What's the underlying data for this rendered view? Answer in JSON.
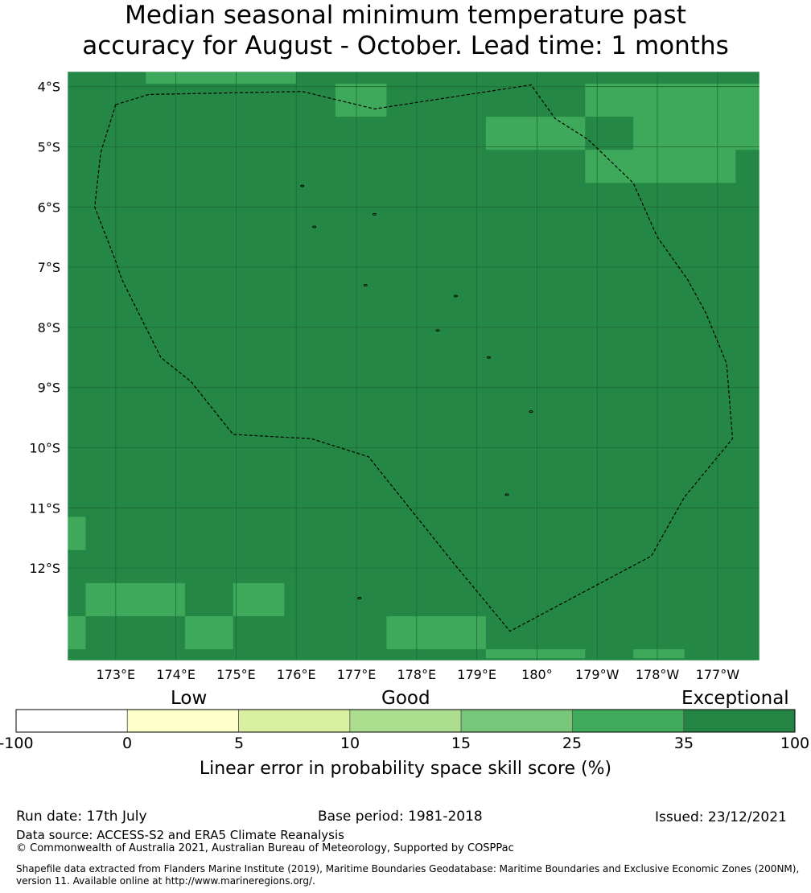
{
  "title": {
    "line1": "Median seasonal minimum temperature past",
    "line2": "accuracy for August - October. Lead time: 1 months"
  },
  "map": {
    "lat_labels": [
      "4°S",
      "5°S",
      "6°S",
      "7°S",
      "8°S",
      "9°S",
      "10°S",
      "11°S",
      "12°S"
    ],
    "lon_labels": [
      "173°E",
      "174°E",
      "175°E",
      "176°E",
      "177°E",
      "178°E",
      "179°E",
      "180°",
      "179°W",
      "178°W",
      "177°W"
    ],
    "lat_range": [
      -13.15,
      -3.75
    ],
    "lon_range": [
      172.2,
      183.7
    ],
    "base_color": "#248745",
    "patch_color": "#3fa95b",
    "light_patches": [
      {
        "lon": [
          173.5,
          176.0
        ],
        "lat": [
          -3.75,
          -3.95
        ]
      },
      {
        "lon": [
          176.65,
          177.5
        ],
        "lat": [
          -3.95,
          -4.5
        ]
      },
      {
        "lon": [
          179.15,
          180.8
        ],
        "lat": [
          -4.5,
          -5.05
        ]
      },
      {
        "lon": [
          180.8,
          183.7
        ],
        "lat": [
          -3.95,
          -4.5
        ]
      },
      {
        "lon": [
          181.6,
          183.7
        ],
        "lat": [
          -4.5,
          -5.05
        ]
      },
      {
        "lon": [
          180.8,
          183.3
        ],
        "lat": [
          -5.05,
          -5.6
        ]
      },
      {
        "lon": [
          172.2,
          172.5
        ],
        "lat": [
          -11.15,
          -11.7
        ]
      },
      {
        "lon": [
          172.5,
          174.15
        ],
        "lat": [
          -12.25,
          -12.8
        ]
      },
      {
        "lon": [
          174.95,
          175.8
        ],
        "lat": [
          -12.25,
          -12.8
        ]
      },
      {
        "lon": [
          172.2,
          172.5
        ],
        "lat": [
          -12.8,
          -13.35
        ]
      },
      {
        "lon": [
          174.15,
          174.95
        ],
        "lat": [
          -12.8,
          -13.35
        ]
      },
      {
        "lon": [
          177.5,
          179.15
        ],
        "lat": [
          -12.8,
          -13.35
        ]
      },
      {
        "lon": [
          179.15,
          180.8
        ],
        "lat": [
          -13.35,
          -13.5
        ]
      },
      {
        "lon": [
          181.6,
          182.45
        ],
        "lat": [
          -13.35,
          -13.5
        ]
      }
    ],
    "eez_boundary": [
      [
        173.0,
        -4.3
      ],
      [
        173.55,
        -4.13
      ],
      [
        176.1,
        -4.08
      ],
      [
        177.3,
        -4.37
      ],
      [
        179.9,
        -3.97
      ],
      [
        180.3,
        -4.53
      ],
      [
        180.85,
        -4.88
      ],
      [
        181.6,
        -5.6
      ],
      [
        182.0,
        -6.5
      ],
      [
        182.5,
        -7.2
      ],
      [
        182.8,
        -7.75
      ],
      [
        183.15,
        -8.6
      ],
      [
        183.25,
        -9.85
      ],
      [
        182.45,
        -10.82
      ],
      [
        181.9,
        -11.8
      ],
      [
        179.55,
        -13.05
      ],
      [
        178.6,
        -11.9
      ],
      [
        177.2,
        -10.15
      ],
      [
        176.25,
        -9.85
      ],
      [
        174.95,
        -9.78
      ],
      [
        174.25,
        -8.9
      ],
      [
        173.75,
        -8.5
      ],
      [
        173.1,
        -7.2
      ],
      [
        173.0,
        -6.9
      ],
      [
        172.65,
        -6.0
      ],
      [
        172.75,
        -5.1
      ],
      [
        173.0,
        -4.3
      ]
    ]
  },
  "colorbar": {
    "categories": [
      "Low",
      "Good",
      "Exceptional"
    ],
    "tick_values": [
      "-100",
      "0",
      "5",
      "10",
      "15",
      "25",
      "35",
      "100"
    ],
    "colors": [
      "#ffffff",
      "#ffffcc",
      "#d9f0a3",
      "#addd8e",
      "#78c679",
      "#41ab5d",
      "#238443"
    ],
    "label": "Linear error in probability space skill score (%)"
  },
  "footer": {
    "run_date": "Run date: 17th July",
    "base_period": "Base period: 1981-2018",
    "issued": "Issued: 23/12/2021",
    "data_source": "Data source: ACCESS-S2 and ERA5 Climate Reanalysis",
    "copyright": "© Commonwealth of Australia 2021, Australian Bureau of Meteorology, Supported by COSPPac",
    "shapefile_line1": "Shapefile data extracted from Flanders Marine Institute (2019), Maritime Boundaries Geodatabase: Maritime Boundaries and Exclusive Economic Zones (200NM),",
    "shapefile_line2": "version 11. Available online at http://www.marineregions.org/."
  }
}
